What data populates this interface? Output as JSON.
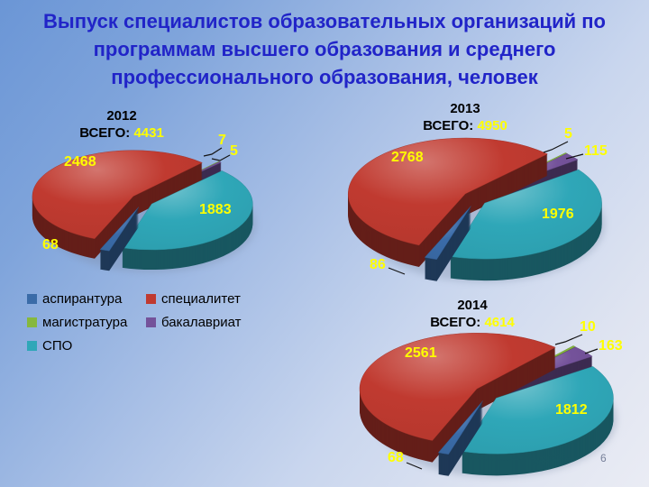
{
  "title": {
    "lines": [
      "Выпуск специалистов образовательных организаций по",
      "программам высшего образования и среднего",
      "профессионального образования, человек"
    ]
  },
  "slide": {
    "page_number": "6"
  },
  "legend": {
    "items": [
      {
        "label": "аспирантура",
        "key": "aspirantura"
      },
      {
        "label": "специалитет",
        "key": "specialitet"
      },
      {
        "label": "магистратура",
        "key": "magistratura"
      },
      {
        "label": "бакалавриат",
        "key": "bakalavriat"
      },
      {
        "label": "СПО",
        "key": "spo"
      }
    ]
  },
  "colors": {
    "aspirantura": "#3A6BA8",
    "specialitet": "#C03A30",
    "magistratura": "#86B83E",
    "bakalavriat": "#74529A",
    "spo": "#2FA7B8",
    "value_label": "#FFFF00",
    "title_text": "#2124C8"
  },
  "chart_data": [
    {
      "type": "pie",
      "title": "2012",
      "total_prefix": "ВСЕГО:",
      "total": 4431,
      "categories": [
        "аспирантура",
        "специалитет",
        "магистратура",
        "бакалавриат",
        "СПО"
      ],
      "values": [
        68,
        2468,
        7,
        5,
        1883
      ],
      "legend_position": "bottom-left",
      "style": "3d-exploded"
    },
    {
      "type": "pie",
      "title": "2013",
      "total_prefix": "ВСЕГО:",
      "total": 4950,
      "categories": [
        "аспирантура",
        "специалитет",
        "магистратура",
        "бакалавриат",
        "СПО"
      ],
      "values": [
        86,
        2768,
        5,
        115,
        1976
      ],
      "legend_position": "shared",
      "style": "3d-exploded"
    },
    {
      "type": "pie",
      "title": "2014",
      "total_prefix": "ВСЕГО:",
      "total": 4614,
      "categories": [
        "аспирантура",
        "специалитет",
        "магистратура",
        "бакалавриат",
        "СПО"
      ],
      "values": [
        68,
        2561,
        10,
        163,
        1812
      ],
      "legend_position": "shared",
      "style": "3d-exploded"
    }
  ]
}
